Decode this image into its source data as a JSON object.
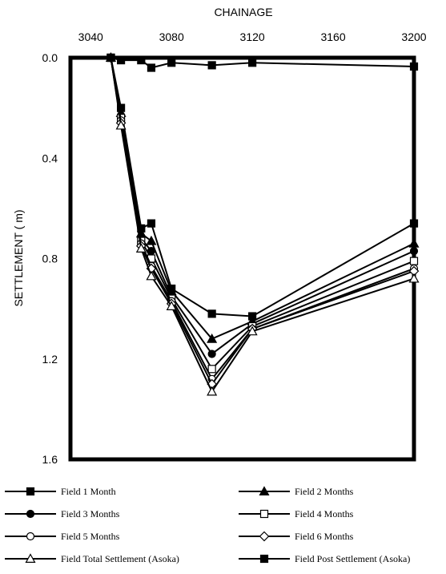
{
  "chart_data": {
    "type": "line",
    "xlabel": "CHAINAGE",
    "ylabel": "SETTLEMENT ( m)",
    "xlim": [
      3030,
      3200
    ],
    "ylim": [
      0,
      1.6
    ],
    "y_inverted": true,
    "x_axis_position": "top",
    "x_ticks": [
      "3040",
      "3080",
      "3120",
      "3160",
      "3200"
    ],
    "y_ticks": [
      "0.0",
      "0.4",
      "0.8",
      "1.2",
      "1.6"
    ],
    "grid": false,
    "legend_position": "bottom",
    "series": [
      {
        "name": "Field 1 Month",
        "marker": "square-filled",
        "x": [
          3050,
          3055,
          3065,
          3070,
          3080,
          3100,
          3120,
          3200
        ],
        "y": [
          0.0,
          0.2,
          0.68,
          0.66,
          0.92,
          1.02,
          1.03,
          0.66
        ]
      },
      {
        "name": "Field 2 Months",
        "marker": "triangle-filled",
        "x": [
          3050,
          3055,
          3065,
          3070,
          3080,
          3100,
          3120,
          3200
        ],
        "y": [
          0.0,
          0.22,
          0.7,
          0.73,
          0.93,
          1.12,
          1.05,
          0.74
        ]
      },
      {
        "name": "Field 3 Months",
        "marker": "circle-filled",
        "x": [
          3050,
          3055,
          3065,
          3070,
          3080,
          3100,
          3120,
          3200
        ],
        "y": [
          0.0,
          0.23,
          0.72,
          0.77,
          0.95,
          1.18,
          1.06,
          0.77
        ]
      },
      {
        "name": "Field 4 Months",
        "marker": "square-open",
        "x": [
          3050,
          3055,
          3065,
          3070,
          3080,
          3100,
          3120,
          3200
        ],
        "y": [
          0.0,
          0.24,
          0.73,
          0.8,
          0.96,
          1.24,
          1.07,
          0.81
        ]
      },
      {
        "name": "Field 5 Months",
        "marker": "circle-open",
        "x": [
          3050,
          3055,
          3065,
          3070,
          3080,
          3100,
          3120,
          3200
        ],
        "y": [
          0.0,
          0.25,
          0.74,
          0.83,
          0.97,
          1.28,
          1.08,
          0.84
        ]
      },
      {
        "name": "Field 6 Months",
        "marker": "diamond-open",
        "x": [
          3050,
          3055,
          3065,
          3070,
          3080,
          3100,
          3120,
          3200
        ],
        "y": [
          0.0,
          0.26,
          0.75,
          0.84,
          0.98,
          1.3,
          1.08,
          0.85
        ]
      },
      {
        "name": "Field Total Settlement (Asoka)",
        "marker": "triangle-open",
        "x": [
          3050,
          3055,
          3065,
          3070,
          3080,
          3100,
          3120,
          3200
        ],
        "y": [
          0.0,
          0.27,
          0.76,
          0.87,
          0.99,
          1.33,
          1.09,
          0.88
        ]
      },
      {
        "name": "Field Post Settlement (Asoka)",
        "marker": "square-filled",
        "x": [
          3050,
          3055,
          3065,
          3070,
          3080,
          3100,
          3120,
          3200
        ],
        "y": [
          0.0,
          0.01,
          0.01,
          0.04,
          0.02,
          0.03,
          0.02,
          0.035
        ]
      }
    ]
  }
}
